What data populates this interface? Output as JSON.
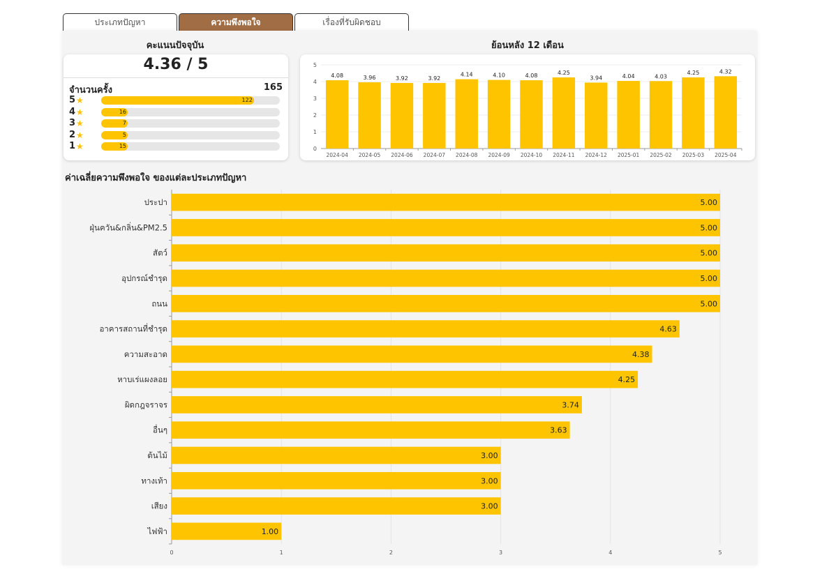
{
  "tabs": [
    {
      "label": "ประเภทปัญหา",
      "active": false
    },
    {
      "label": "ความพึงพอใจ",
      "active": true
    },
    {
      "label": "เรื่องที่รับผิดชอบ",
      "active": false
    }
  ],
  "current": {
    "title": "คะแนนปัจจุบัน",
    "score": "4.36 / 5",
    "count_label": "จำนวนครั้ง",
    "count_value": "165",
    "stars": [
      {
        "star": "5",
        "count": 122
      },
      {
        "star": "4",
        "count": 16
      },
      {
        "star": "3",
        "count": 7
      },
      {
        "star": "2",
        "count": 5
      },
      {
        "star": "1",
        "count": 15
      }
    ]
  },
  "monthly": {
    "title": "ย้อนหลัง 12 เดือน"
  },
  "category": {
    "title": "ค่าเฉลี่ยความพึงพอใจ ของแต่ละประเภทปัญหา"
  },
  "chart_data": [
    {
      "type": "bar",
      "title": "ย้อนหลัง 12 เดือน",
      "categories": [
        "2024-04",
        "2024-05",
        "2024-06",
        "2024-07",
        "2024-08",
        "2024-09",
        "2024-10",
        "2024-11",
        "2024-12",
        "2025-01",
        "2025-02",
        "2025-03",
        "2025-04"
      ],
      "values": [
        4.08,
        3.96,
        3.92,
        3.92,
        4.14,
        4.1,
        4.08,
        4.25,
        3.94,
        4.04,
        4.03,
        4.25,
        4.32
      ],
      "labels": [
        "4.08",
        "3.96",
        "3.92",
        "3.92",
        "4.14",
        "4.10",
        "4.08",
        "4.25",
        "3.94",
        "4.04",
        "4.03",
        "4.25",
        "4.32"
      ],
      "ylim": [
        0,
        5
      ],
      "yticks": [
        "0",
        "1",
        "2",
        "3",
        "4",
        "5"
      ],
      "color": "#ffc400"
    },
    {
      "type": "bar",
      "orientation": "horizontal",
      "title": "ค่าเฉลี่ยความพึงพอใจ ของแต่ละประเภทปัญหา",
      "categories": [
        "ประปา",
        "ฝุ่นควัน&กลิ่น&PM2.5",
        "สัตว์",
        "อุปกรณ์ชำรุด",
        "ถนน",
        "อาคารสถานที่ชำรุด",
        "ความสะอาด",
        "หาบเร่แผงลอย",
        "ผิดกฎจราจร",
        "อื่นๆ",
        "ต้นไม้",
        "ทางเท้า",
        "เสียง",
        "ไฟฟ้า"
      ],
      "values": [
        5.0,
        5.0,
        5.0,
        5.0,
        5.0,
        4.63,
        4.38,
        4.25,
        3.74,
        3.63,
        3.0,
        3.0,
        3.0,
        1.0
      ],
      "labels": [
        "5.00",
        "5.00",
        "5.00",
        "5.00",
        "5.00",
        "4.63",
        "4.38",
        "4.25",
        "3.74",
        "3.63",
        "3.00",
        "3.00",
        "3.00",
        "1.00"
      ],
      "xlim": [
        0,
        5
      ],
      "xticks": [
        "0",
        "1",
        "2",
        "3",
        "4",
        "5"
      ],
      "color": "#ffc400",
      "grid": true
    }
  ]
}
